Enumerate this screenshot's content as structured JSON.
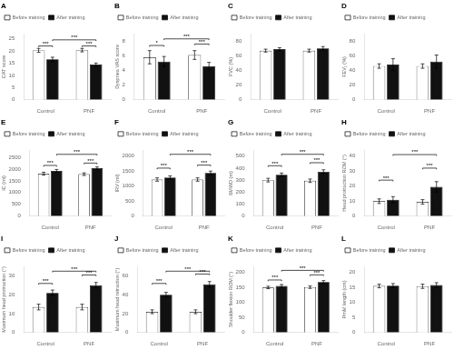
{
  "chart_data": [
    {
      "type": "bar",
      "title": "A",
      "ylabel": "CAT score",
      "categories": [
        "Control",
        "PNF"
      ],
      "series": [
        {
          "name": "Before training",
          "color": "#ffffff",
          "values": [
            20.2,
            20.3
          ],
          "errors": [
            0.8,
            0.7
          ]
        },
        {
          "name": "After training",
          "color": "#111111",
          "values": [
            16.5,
            14.4
          ],
          "errors": [
            0.9,
            0.6
          ]
        }
      ],
      "ylim": [
        0,
        27
      ],
      "yticks": [
        0,
        5,
        10,
        15,
        20,
        25
      ],
      "grid": false,
      "legend": "upper left",
      "annotations": [
        {
          "text": "***",
          "y": 22.0,
          "from": [
            "Control",
            "Before training"
          ],
          "to": [
            "Control",
            "After training"
          ]
        },
        {
          "text": "***",
          "y": 22.0,
          "from": [
            "PNF",
            "Before training"
          ],
          "to": [
            "PNF",
            "After training"
          ]
        },
        {
          "text": "***",
          "y": 24.5,
          "from": [
            "Control",
            "After training"
          ],
          "to": [
            "PNF",
            "After training"
          ]
        }
      ]
    },
    {
      "type": "bar",
      "title": "B",
      "ylabel": "Dyspnea VAS score",
      "categories": [
        "Control",
        "PNF"
      ],
      "series": [
        {
          "name": "Before training",
          "color": "#ffffff",
          "values": [
            5.8,
            6.1
          ],
          "errors": [
            0.9,
            0.6
          ]
        },
        {
          "name": "After training",
          "color": "#111111",
          "values": [
            5.2,
            4.6
          ],
          "errors": [
            0.7,
            0.5
          ]
        }
      ],
      "ylim": [
        0,
        9
      ],
      "yticks": [
        0,
        2,
        4,
        6,
        8
      ],
      "grid": false,
      "legend": "upper left",
      "annotations": [
        {
          "text": "*",
          "y": 7.4,
          "from": [
            "Control",
            "Before training"
          ],
          "to": [
            "Control",
            "After training"
          ]
        },
        {
          "text": "***",
          "y": 7.6,
          "from": [
            "PNF",
            "Before training"
          ],
          "to": [
            "PNF",
            "After training"
          ]
        },
        {
          "text": "***",
          "y": 8.3,
          "from": [
            "Control",
            "After training"
          ],
          "to": [
            "PNF",
            "After training"
          ]
        }
      ]
    },
    {
      "type": "bar",
      "title": "C",
      "ylabel": "FVC (%)",
      "categories": [
        "Control",
        "PNF"
      ],
      "series": [
        {
          "name": "Before training",
          "color": "#ffffff",
          "values": [
            67,
            67
          ],
          "errors": [
            2,
            2
          ]
        },
        {
          "name": "After training",
          "color": "#111111",
          "values": [
            69,
            70
          ],
          "errors": [
            2,
            2.5
          ]
        }
      ],
      "ylim": [
        0,
        90
      ],
      "yticks": [
        0,
        20,
        40,
        60,
        80
      ],
      "grid": false,
      "legend": "upper left"
    },
    {
      "type": "bar",
      "title": "D",
      "ylabel": "FEV₁ (%)",
      "categories": [
        "Control",
        "PNF"
      ],
      "series": [
        {
          "name": "Before training",
          "color": "#ffffff",
          "values": [
            46,
            46
          ],
          "errors": [
            3,
            3
          ]
        },
        {
          "name": "After training",
          "color": "#111111",
          "values": [
            48,
            52
          ],
          "errors": [
            8,
            9
          ]
        }
      ],
      "ylim": [
        0,
        90
      ],
      "yticks": [
        0,
        20,
        40,
        60,
        80
      ],
      "grid": false,
      "legend": "upper left"
    },
    {
      "type": "bar",
      "title": "E",
      "ylabel": "IC (ml)",
      "categories": [
        "Control",
        "PNF"
      ],
      "series": [
        {
          "name": "Before training",
          "color": "#ffffff",
          "values": [
            1800,
            1780
          ],
          "errors": [
            60,
            55
          ]
        },
        {
          "name": "After training",
          "color": "#111111",
          "values": [
            1920,
            2030
          ],
          "errors": [
            60,
            55
          ]
        }
      ],
      "ylim": [
        0,
        2800
      ],
      "yticks": [
        0,
        500,
        1000,
        1500,
        2000,
        2500
      ],
      "grid": false,
      "legend": "upper left",
      "annotations": [
        {
          "text": "***",
          "y": 2150,
          "from": [
            "Control",
            "Before training"
          ],
          "to": [
            "Control",
            "After training"
          ]
        },
        {
          "text": "***",
          "y": 2250,
          "from": [
            "PNF",
            "Before training"
          ],
          "to": [
            "PNF",
            "After training"
          ]
        },
        {
          "text": "***",
          "y": 2620,
          "from": [
            "Control",
            "After training"
          ],
          "to": [
            "PNF",
            "After training"
          ]
        }
      ]
    },
    {
      "type": "bar",
      "title": "F",
      "ylabel": "IRV (ml)",
      "categories": [
        "Control",
        "PNF"
      ],
      "series": [
        {
          "name": "Before training",
          "color": "#ffffff",
          "values": [
            1220,
            1220
          ],
          "errors": [
            55,
            55
          ]
        },
        {
          "name": "After training",
          "color": "#111111",
          "values": [
            1290,
            1440
          ],
          "errors": [
            50,
            60
          ]
        }
      ],
      "ylim": [
        0,
        2200
      ],
      "yticks": [
        0,
        500,
        1000,
        1500,
        2000
      ],
      "grid": false,
      "legend": "upper left",
      "annotations": [
        {
          "text": "***",
          "y": 1600,
          "from": [
            "Control",
            "Before training"
          ],
          "to": [
            "Control",
            "After training"
          ]
        },
        {
          "text": "***",
          "y": 1700,
          "from": [
            "PNF",
            "Before training"
          ],
          "to": [
            "PNF",
            "After training"
          ]
        },
        {
          "text": "***",
          "y": 2060,
          "from": [
            "Control",
            "After training"
          ],
          "to": [
            "PNF",
            "After training"
          ]
        }
      ]
    },
    {
      "type": "bar",
      "title": "G",
      "ylabel": "6MWD (m)",
      "categories": [
        "Control",
        "PNF"
      ],
      "series": [
        {
          "name": "Before training",
          "color": "#ffffff",
          "values": [
            300,
            295
          ],
          "errors": [
            15,
            14
          ]
        },
        {
          "name": "After training",
          "color": "#111111",
          "values": [
            345,
            370
          ],
          "errors": [
            14,
            16
          ]
        }
      ],
      "ylim": [
        0,
        550
      ],
      "yticks": [
        0,
        100,
        200,
        300,
        400,
        500
      ],
      "grid": false,
      "legend": "upper left",
      "annotations": [
        {
          "text": "***",
          "y": 420,
          "from": [
            "Control",
            "Before training"
          ],
          "to": [
            "Control",
            "After training"
          ]
        },
        {
          "text": "***",
          "y": 445,
          "from": [
            "PNF",
            "Before training"
          ],
          "to": [
            "PNF",
            "After training"
          ]
        },
        {
          "text": "***",
          "y": 515,
          "from": [
            "Control",
            "After training"
          ],
          "to": [
            "PNF",
            "After training"
          ]
        }
      ]
    },
    {
      "type": "bar",
      "title": "H",
      "ylabel": "Head protraction ROM (°)",
      "categories": [
        "Control",
        "PNF"
      ],
      "series": [
        {
          "name": "Before training",
          "color": "#ffffff",
          "values": [
            10.0,
            9.5
          ],
          "errors": [
            1.5,
            1.5
          ]
        },
        {
          "name": "After training",
          "color": "#111111",
          "values": [
            11.0,
            19.5
          ],
          "errors": [
            2.0,
            3.5
          ]
        }
      ],
      "ylim": [
        0,
        44
      ],
      "yticks": [
        0,
        10,
        20,
        30,
        40
      ],
      "grid": false,
      "legend": "upper left",
      "annotations": [
        {
          "text": "***",
          "y": 24.0,
          "from": [
            "Control",
            "Before training"
          ],
          "to": [
            "Control",
            "After training"
          ]
        },
        {
          "text": "***",
          "y": 32.0,
          "from": [
            "PNF",
            "Before training"
          ],
          "to": [
            "PNF",
            "After training"
          ]
        },
        {
          "text": "***",
          "y": 41.0,
          "from": [
            "Control",
            "After training"
          ],
          "to": [
            "PNF",
            "After training"
          ]
        }
      ]
    },
    {
      "type": "bar",
      "title": "I",
      "ylabel": "Maximum head protraction (°)",
      "categories": [
        "Control",
        "PNF"
      ],
      "series": [
        {
          "name": "Before training",
          "color": "#ffffff",
          "values": [
            13.5,
            13.5
          ],
          "errors": [
            1.5,
            1.5
          ]
        },
        {
          "name": "After training",
          "color": "#111111",
          "values": [
            21.0,
            25.0
          ],
          "errors": [
            1.5,
            1.5
          ]
        }
      ],
      "ylim": [
        0,
        35
      ],
      "yticks": [
        0,
        10,
        20,
        30
      ],
      "grid": false,
      "legend": "upper left",
      "annotations": [
        {
          "text": "***",
          "y": 26.0,
          "from": [
            "Control",
            "Before training"
          ],
          "to": [
            "Control",
            "After training"
          ]
        },
        {
          "text": "***",
          "y": 30.5,
          "from": [
            "PNF",
            "Before training"
          ],
          "to": [
            "PNF",
            "After training"
          ]
        },
        {
          "text": "***",
          "y": 32.5,
          "from": [
            "Control",
            "After training"
          ],
          "to": [
            "PNF",
            "After training"
          ]
        }
      ]
    },
    {
      "type": "bar",
      "title": "J",
      "ylabel": "Maximum head retraction (°)",
      "categories": [
        "Control",
        "PNF"
      ],
      "series": [
        {
          "name": "Before training",
          "color": "#ffffff",
          "values": [
            22.0,
            22.0
          ],
          "errors": [
            2.0,
            2.0
          ]
        },
        {
          "name": "After training",
          "color": "#111111",
          "values": [
            40.0,
            51.0
          ],
          "errors": [
            2.5,
            3.0
          ]
        }
      ],
      "ylim": [
        0,
        70
      ],
      "yticks": [
        0,
        20,
        40,
        60
      ],
      "grid": false,
      "legend": "upper left",
      "annotations": [
        {
          "text": "***",
          "y": 52.0,
          "from": [
            "Control",
            "Before training"
          ],
          "to": [
            "Control",
            "After training"
          ]
        },
        {
          "text": "***",
          "y": 62.0,
          "from": [
            "PNF",
            "Before training"
          ],
          "to": [
            "PNF",
            "After training"
          ]
        },
        {
          "text": "***",
          "y": 65.0,
          "from": [
            "Control",
            "After training"
          ],
          "to": [
            "PNF",
            "After training"
          ]
        }
      ]
    },
    {
      "type": "bar",
      "title": "K",
      "ylabel": "Shoulder flexion ROM (°)",
      "categories": [
        "Control",
        "PNF"
      ],
      "series": [
        {
          "name": "Before training",
          "color": "#ffffff",
          "values": [
            150,
            151
          ],
          "errors": [
            4,
            4
          ]
        },
        {
          "name": "After training",
          "color": "#111111",
          "values": [
            155,
            168
          ],
          "errors": [
            5,
            5
          ]
        }
      ],
      "ylim": [
        0,
        220
      ],
      "yticks": [
        0,
        50,
        100,
        150,
        200
      ],
      "grid": false,
      "legend": "upper left",
      "annotations": [
        {
          "text": "***",
          "y": 175,
          "from": [
            "Control",
            "Before training"
          ],
          "to": [
            "Control",
            "After training"
          ]
        },
        {
          "text": "***",
          "y": 192,
          "from": [
            "PNF",
            "Before training"
          ],
          "to": [
            "PNF",
            "After training"
          ]
        },
        {
          "text": "***",
          "y": 207,
          "from": [
            "Control",
            "After training"
          ],
          "to": [
            "PNF",
            "After training"
          ]
        }
      ]
    },
    {
      "type": "bar",
      "title": "L",
      "ylabel": "PmM length (cm)",
      "categories": [
        "Control",
        "PNF"
      ],
      "series": [
        {
          "name": "Before training",
          "color": "#ffffff",
          "values": [
            15.5,
            15.4
          ],
          "errors": [
            0.6,
            0.7
          ]
        },
        {
          "name": "After training",
          "color": "#111111",
          "values": [
            15.6,
            15.8
          ],
          "errors": [
            0.7,
            0.8
          ]
        }
      ],
      "ylim": [
        0,
        22
      ],
      "yticks": [
        0,
        5,
        10,
        15,
        20
      ],
      "grid": false,
      "legend": "upper left"
    }
  ]
}
